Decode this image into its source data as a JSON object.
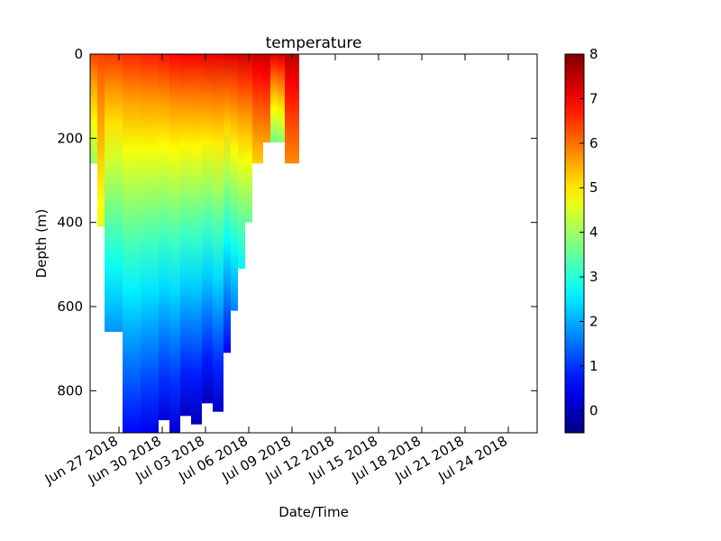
{
  "chart_data": {
    "type": "heatmap",
    "title": "temperature",
    "xlabel": "Date/Time",
    "ylabel": "Depth (m)",
    "x_type": "date",
    "xlim": [
      "2018-06-25",
      "2018-07-26"
    ],
    "ylim": [
      900,
      0
    ],
    "y_inverted": true,
    "x_ticks": [
      "Jun 27 2018",
      "Jun 30 2018",
      "Jul 03 2018",
      "Jul 06 2018",
      "Jul 09 2018",
      "Jul 12 2018",
      "Jul 15 2018",
      "Jul 18 2018",
      "Jul 21 2018",
      "Jul 24 2018"
    ],
    "y_ticks": [
      "0",
      "200",
      "400",
      "600",
      "800"
    ],
    "colorbar": {
      "colormap": "jet",
      "min": -0.5,
      "max": 8,
      "ticks": [
        "0",
        "1",
        "2",
        "3",
        "4",
        "5",
        "6",
        "7",
        "8"
      ]
    },
    "profiles": [
      {
        "start": "2018-06-25T00:00",
        "end": "2018-06-25T12:00",
        "max_depth": 260,
        "surface_temp": 6.4,
        "bottom_temp": 4.0
      },
      {
        "start": "2018-06-25T12:00",
        "end": "2018-06-26T00:00",
        "max_depth": 410,
        "surface_temp": 6.4,
        "bottom_temp": 4.6
      },
      {
        "start": "2018-06-26T00:00",
        "end": "2018-06-27T06:00",
        "max_depth": 660,
        "surface_temp": 6.5,
        "bottom_temp": 1.8
      },
      {
        "start": "2018-06-27T06:00",
        "end": "2018-06-28T12:00",
        "max_depth": 900,
        "surface_temp": 6.6,
        "bottom_temp": 0.6
      },
      {
        "start": "2018-06-28T12:00",
        "end": "2018-06-29T18:00",
        "max_depth": 900,
        "surface_temp": 6.7,
        "bottom_temp": 0.4
      },
      {
        "start": "2018-06-29T18:00",
        "end": "2018-06-30T12:00",
        "max_depth": 870,
        "surface_temp": 6.8,
        "bottom_temp": 0.3
      },
      {
        "start": "2018-06-30T12:00",
        "end": "2018-07-01T06:00",
        "max_depth": 900,
        "surface_temp": 6.9,
        "bottom_temp": 0.2
      },
      {
        "start": "2018-07-01T06:00",
        "end": "2018-07-02T00:00",
        "max_depth": 860,
        "surface_temp": 7.0,
        "bottom_temp": 0.1
      },
      {
        "start": "2018-07-02T00:00",
        "end": "2018-07-02T18:00",
        "max_depth": 880,
        "surface_temp": 7.0,
        "bottom_temp": 0.0
      },
      {
        "start": "2018-07-02T18:00",
        "end": "2018-07-03T12:00",
        "max_depth": 830,
        "surface_temp": 7.1,
        "bottom_temp": 0.0
      },
      {
        "start": "2018-07-03T12:00",
        "end": "2018-07-04T06:00",
        "max_depth": 850,
        "surface_temp": 7.1,
        "bottom_temp": 0.1
      },
      {
        "start": "2018-07-04T06:00",
        "end": "2018-07-04T18:00",
        "max_depth": 710,
        "surface_temp": 7.2,
        "bottom_temp": 0.5
      },
      {
        "start": "2018-07-04T18:00",
        "end": "2018-07-05T06:00",
        "max_depth": 610,
        "surface_temp": 7.2,
        "bottom_temp": 1.6
      },
      {
        "start": "2018-07-05T06:00",
        "end": "2018-07-05T18:00",
        "max_depth": 510,
        "surface_temp": 7.3,
        "bottom_temp": 2.6
      },
      {
        "start": "2018-07-05T18:00",
        "end": "2018-07-06T06:00",
        "max_depth": 400,
        "surface_temp": 7.3,
        "bottom_temp": 3.5
      },
      {
        "start": "2018-07-06T06:00",
        "end": "2018-07-07T00:00",
        "max_depth": 260,
        "surface_temp": 7.4,
        "bottom_temp": 5.2
      },
      {
        "start": "2018-07-07T00:00",
        "end": "2018-07-07T12:00",
        "max_depth": 210,
        "surface_temp": 7.5,
        "bottom_temp": 5.6
      },
      {
        "start": "2018-07-07T12:00",
        "end": "2018-07-08T00:00",
        "max_depth": 210,
        "surface_temp": 7.2,
        "bottom_temp": 3.6
      },
      {
        "start": "2018-07-08T00:00",
        "end": "2018-07-08T12:00",
        "max_depth": 210,
        "surface_temp": 7.3,
        "bottom_temp": 3.8
      },
      {
        "start": "2018-07-08T12:00",
        "end": "2018-07-09T12:00",
        "max_depth": 260,
        "surface_temp": 7.5,
        "bottom_temp": 5.8
      }
    ]
  }
}
